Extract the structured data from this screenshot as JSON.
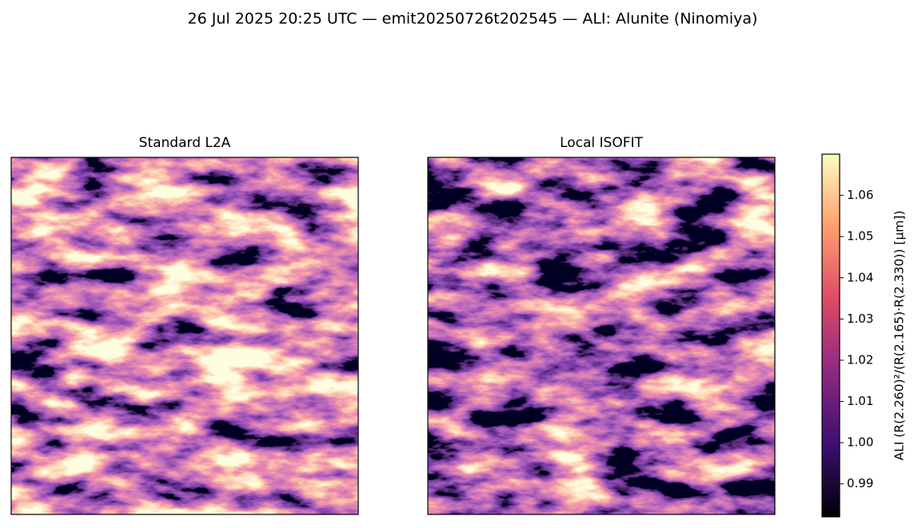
{
  "title": "26 Jul 2025 20:25 UTC — emit20250726t202545 — ALI: Alunite (Ninomiya)",
  "chart_data": [
    {
      "type": "image",
      "title": "Standard L2A"
    },
    {
      "type": "image",
      "title": "Local ISOFIT"
    },
    {
      "type": "colorbar",
      "label": "ALI  (R(2.260)²/(R(2.165)·R(2.330))  [µm])",
      "colormap": "magma",
      "colors": [
        "#000004",
        "#3b0f70",
        "#8c2981",
        "#de4968",
        "#fe9f6d",
        "#fcfdbf"
      ],
      "ylim": [
        0.982,
        1.07
      ],
      "yticks": [
        0.99,
        {
          "value": 1,
          "label": "1.00"
        },
        1.01,
        1.02,
        1.03,
        1.04,
        1.05,
        1.06
      ]
    }
  ]
}
